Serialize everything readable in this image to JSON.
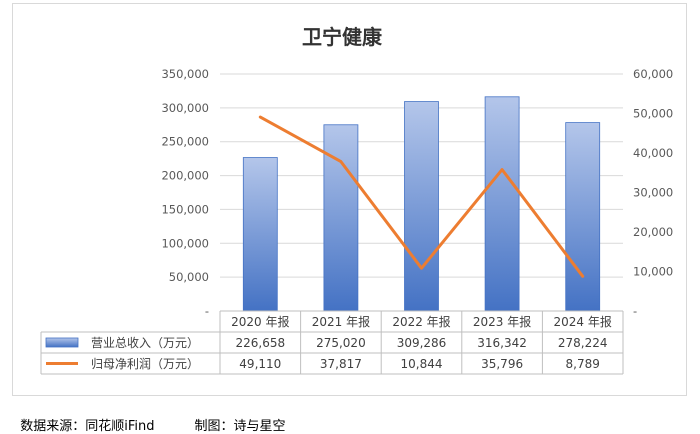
{
  "chart_data": {
    "type": "bar",
    "title": "卫宁健康",
    "categories": [
      "2020 年报",
      "2021 年报",
      "2022 年报",
      "2023 年报",
      "2024 年报"
    ],
    "series": [
      {
        "name": "营业总收入（万元）",
        "type": "bar",
        "axis": "left",
        "values": [
          226658,
          275020,
          309286,
          316342,
          278224
        ],
        "labels": [
          "226,658",
          "275,020",
          "309,286",
          "316,342",
          "278,224"
        ],
        "color_top": "#b4c6ea",
        "color_bottom": "#4472c4"
      },
      {
        "name": "归母净利润（万元）",
        "type": "line",
        "axis": "right",
        "values": [
          49110,
          37817,
          10844,
          35796,
          8789
        ],
        "labels": [
          "49,110",
          "37,817",
          "10,844",
          "35,796",
          "8,789"
        ],
        "color": "#ed7d31"
      }
    ],
    "y_left": {
      "range": [
        0,
        350000
      ],
      "ticks": [
        "-",
        "50,000",
        "100,000",
        "150,000",
        "200,000",
        "250,000",
        "300,000",
        "350,000"
      ]
    },
    "y_right": {
      "range": [
        0,
        60000
      ],
      "ticks": [
        "-",
        "10,000",
        "20,000",
        "30,000",
        "40,000",
        "50,000",
        "60,000"
      ]
    },
    "grid": true,
    "legend": "data-table-bottom"
  },
  "footer": {
    "source": "数据来源：同花顺iFind",
    "maker": "制图：诗与星空"
  }
}
